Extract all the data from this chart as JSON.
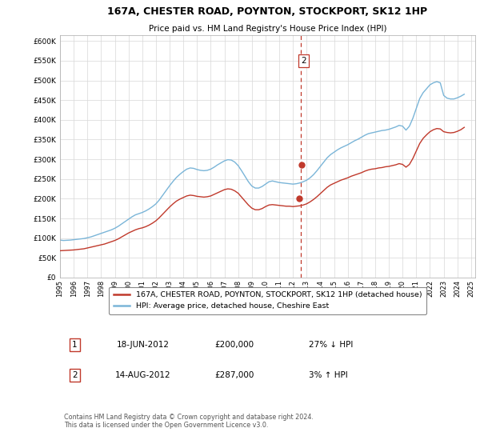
{
  "title": "167A, CHESTER ROAD, POYNTON, STOCKPORT, SK12 1HP",
  "subtitle": "Price paid vs. HM Land Registry's House Price Index (HPI)",
  "ylabel_ticks": [
    "£0",
    "£50K",
    "£100K",
    "£150K",
    "£200K",
    "£250K",
    "£300K",
    "£350K",
    "£400K",
    "£450K",
    "£500K",
    "£550K",
    "£600K"
  ],
  "ytick_values": [
    0,
    50000,
    100000,
    150000,
    200000,
    250000,
    300000,
    350000,
    400000,
    450000,
    500000,
    550000,
    600000
  ],
  "ylim": [
    0,
    615000
  ],
  "xlim_start": 1995.0,
  "xlim_end": 2025.3,
  "hpi_color": "#7ab5d8",
  "price_color": "#c0392b",
  "vline_color": "#c0392b",
  "transaction1": {
    "date": "18-JUN-2012",
    "price": 200000,
    "label": "1",
    "year": 2012.46
  },
  "transaction2": {
    "date": "14-AUG-2012",
    "price": 287000,
    "label": "2",
    "year": 2012.62
  },
  "legend_label_red": "167A, CHESTER ROAD, POYNTON, STOCKPORT, SK12 1HP (detached house)",
  "legend_label_blue": "HPI: Average price, detached house, Cheshire East",
  "footnote": "Contains HM Land Registry data © Crown copyright and database right 2024.\nThis data is licensed under the Open Government Licence v3.0.",
  "table_rows": [
    {
      "num": "1",
      "date": "18-JUN-2012",
      "price": "£200,000",
      "change": "27% ↓ HPI"
    },
    {
      "num": "2",
      "date": "14-AUG-2012",
      "price": "£287,000",
      "change": "3% ↑ HPI"
    }
  ],
  "hpi_data_x": [
    1995.0,
    1995.25,
    1995.5,
    1995.75,
    1996.0,
    1996.25,
    1996.5,
    1996.75,
    1997.0,
    1997.25,
    1997.5,
    1997.75,
    1998.0,
    1998.25,
    1998.5,
    1998.75,
    1999.0,
    1999.25,
    1999.5,
    1999.75,
    2000.0,
    2000.25,
    2000.5,
    2000.75,
    2001.0,
    2001.25,
    2001.5,
    2001.75,
    2002.0,
    2002.25,
    2002.5,
    2002.75,
    2003.0,
    2003.25,
    2003.5,
    2003.75,
    2004.0,
    2004.25,
    2004.5,
    2004.75,
    2005.0,
    2005.25,
    2005.5,
    2005.75,
    2006.0,
    2006.25,
    2006.5,
    2006.75,
    2007.0,
    2007.25,
    2007.5,
    2007.75,
    2008.0,
    2008.25,
    2008.5,
    2008.75,
    2009.0,
    2009.25,
    2009.5,
    2009.75,
    2010.0,
    2010.25,
    2010.5,
    2010.75,
    2011.0,
    2011.25,
    2011.5,
    2011.75,
    2012.0,
    2012.25,
    2012.5,
    2012.75,
    2013.0,
    2013.25,
    2013.5,
    2013.75,
    2014.0,
    2014.25,
    2014.5,
    2014.75,
    2015.0,
    2015.25,
    2015.5,
    2015.75,
    2016.0,
    2016.25,
    2016.5,
    2016.75,
    2017.0,
    2017.25,
    2017.5,
    2017.75,
    2018.0,
    2018.25,
    2018.5,
    2018.75,
    2019.0,
    2019.25,
    2019.5,
    2019.75,
    2020.0,
    2020.25,
    2020.5,
    2020.75,
    2021.0,
    2021.25,
    2021.5,
    2021.75,
    2022.0,
    2022.25,
    2022.5,
    2022.75,
    2023.0,
    2023.25,
    2023.5,
    2023.75,
    2024.0,
    2024.25,
    2024.5
  ],
  "hpi_data_y": [
    95000,
    94000,
    94500,
    95000,
    96000,
    97000,
    98000,
    99000,
    101000,
    103000,
    106000,
    109000,
    112000,
    115000,
    118000,
    121000,
    125000,
    130000,
    136000,
    142000,
    148000,
    154000,
    159000,
    162000,
    165000,
    169000,
    174000,
    180000,
    187000,
    197000,
    209000,
    221000,
    233000,
    244000,
    254000,
    262000,
    269000,
    275000,
    278000,
    277000,
    274000,
    272000,
    271000,
    272000,
    275000,
    280000,
    286000,
    291000,
    296000,
    299000,
    298000,
    293000,
    284000,
    271000,
    257000,
    243000,
    232000,
    227000,
    227000,
    231000,
    237000,
    243000,
    245000,
    243000,
    241000,
    240000,
    239000,
    238000,
    237000,
    238000,
    240000,
    243000,
    247000,
    253000,
    261000,
    271000,
    282000,
    293000,
    304000,
    312000,
    318000,
    324000,
    329000,
    333000,
    337000,
    342000,
    347000,
    351000,
    356000,
    361000,
    365000,
    367000,
    369000,
    371000,
    373000,
    374000,
    376000,
    379000,
    382000,
    386000,
    384000,
    374000,
    384000,
    404000,
    429000,
    454000,
    469000,
    479000,
    489000,
    494000,
    497000,
    494000,
    462000,
    455000,
    453000,
    453000,
    456000,
    460000,
    465000
  ],
  "price_data_x": [
    1995.0,
    1995.25,
    1995.5,
    1995.75,
    1996.0,
    1996.25,
    1996.5,
    1996.75,
    1997.0,
    1997.25,
    1997.5,
    1997.75,
    1998.0,
    1998.25,
    1998.5,
    1998.75,
    1999.0,
    1999.25,
    1999.5,
    1999.75,
    2000.0,
    2000.25,
    2000.5,
    2000.75,
    2001.0,
    2001.25,
    2001.5,
    2001.75,
    2002.0,
    2002.25,
    2002.5,
    2002.75,
    2003.0,
    2003.25,
    2003.5,
    2003.75,
    2004.0,
    2004.25,
    2004.5,
    2004.75,
    2005.0,
    2005.25,
    2005.5,
    2005.75,
    2006.0,
    2006.25,
    2006.5,
    2006.75,
    2007.0,
    2007.25,
    2007.5,
    2007.75,
    2008.0,
    2008.25,
    2008.5,
    2008.75,
    2009.0,
    2009.25,
    2009.5,
    2009.75,
    2010.0,
    2010.25,
    2010.5,
    2010.75,
    2011.0,
    2011.25,
    2011.5,
    2011.75,
    2012.0,
    2012.25,
    2012.5,
    2012.75,
    2013.0,
    2013.25,
    2013.5,
    2013.75,
    2014.0,
    2014.25,
    2014.5,
    2014.75,
    2015.0,
    2015.25,
    2015.5,
    2015.75,
    2016.0,
    2016.25,
    2016.5,
    2016.75,
    2017.0,
    2017.25,
    2017.5,
    2017.75,
    2018.0,
    2018.25,
    2018.5,
    2018.75,
    2019.0,
    2019.25,
    2019.5,
    2019.75,
    2020.0,
    2020.25,
    2020.5,
    2020.75,
    2021.0,
    2021.25,
    2021.5,
    2021.75,
    2022.0,
    2022.25,
    2022.5,
    2022.75,
    2023.0,
    2023.25,
    2023.5,
    2023.75,
    2024.0,
    2024.25,
    2024.5
  ],
  "price_data_y": [
    68000,
    68500,
    69000,
    69500,
    70000,
    71000,
    72000,
    73000,
    75000,
    77000,
    79000,
    81000,
    83000,
    85000,
    88000,
    91000,
    94000,
    98000,
    103000,
    108000,
    113000,
    117000,
    121000,
    124000,
    126000,
    129000,
    133000,
    138000,
    144000,
    152000,
    161000,
    170000,
    179000,
    187000,
    194000,
    199000,
    203000,
    207000,
    209000,
    208000,
    206000,
    205000,
    204000,
    205000,
    207000,
    211000,
    215000,
    219000,
    223000,
    225000,
    224000,
    220000,
    214000,
    204000,
    194000,
    184000,
    176000,
    172000,
    172000,
    175000,
    180000,
    184000,
    185000,
    184000,
    183000,
    182000,
    181000,
    181000,
    180000,
    181000,
    182000,
    184000,
    187000,
    192000,
    198000,
    205000,
    213000,
    221000,
    229000,
    235000,
    239000,
    243000,
    247000,
    250000,
    253000,
    257000,
    260000,
    263000,
    266000,
    270000,
    273000,
    275000,
    276000,
    278000,
    279000,
    281000,
    282000,
    284000,
    286000,
    289000,
    287000,
    280000,
    287000,
    302000,
    321000,
    340000,
    353000,
    362000,
    370000,
    375000,
    378000,
    377000,
    370000,
    368000,
    367000,
    368000,
    371000,
    375000,
    381000
  ],
  "vline_x": 2012.55
}
